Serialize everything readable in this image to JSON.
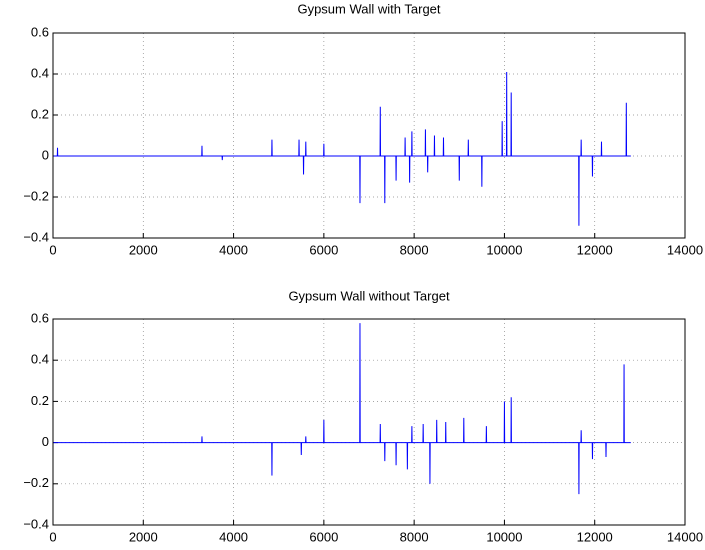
{
  "chart_data": [
    {
      "type": "line",
      "title": "Gypsum Wall with Target",
      "color": "#0000ff",
      "grid": true,
      "xlim": [
        0,
        14000
      ],
      "xticks": [
        0,
        2000,
        4000,
        6000,
        8000,
        10000,
        12000,
        14000
      ],
      "ylim": [
        -0.4,
        0.6
      ],
      "yticks": [
        {
          "value": -0.4,
          "label": "−0.4"
        },
        {
          "value": -0.2,
          "label": "−0.2"
        },
        0,
        0.2,
        0.4,
        0.6
      ],
      "x": [
        0,
        95,
        100,
        105,
        3295,
        3300,
        3305,
        3745,
        3750,
        3755,
        4845,
        4850,
        4855,
        5445,
        5450,
        5455,
        5545,
        5550,
        5555,
        5595,
        5600,
        5605,
        5995,
        6000,
        6005,
        6795,
        6800,
        6805,
        7245,
        7250,
        7255,
        7345,
        7350,
        7355,
        7595,
        7600,
        7605,
        7795,
        7800,
        7805,
        7895,
        7900,
        7905,
        7945,
        7950,
        7955,
        8245,
        8250,
        8255,
        8295,
        8300,
        8305,
        8445,
        8450,
        8455,
        8645,
        8650,
        8655,
        8995,
        9000,
        9005,
        9195,
        9200,
        9205,
        9495,
        9500,
        9505,
        9945,
        9950,
        9955,
        10045,
        10050,
        10055,
        10145,
        10150,
        10155,
        11645,
        11650,
        11655,
        11695,
        11700,
        11705,
        11945,
        11950,
        11955,
        12145,
        12150,
        12155,
        12695,
        12700,
        12705,
        12800
      ],
      "values": [
        0,
        0,
        0.04,
        0,
        0,
        0.05,
        0,
        0,
        -0.02,
        0,
        0,
        0.08,
        0,
        0,
        0.08,
        0,
        0,
        -0.09,
        0,
        0,
        0.07,
        0,
        0,
        0.06,
        0,
        0,
        -0.23,
        0,
        0,
        0.24,
        0,
        0,
        -0.23,
        0,
        0,
        -0.12,
        0,
        0,
        0.09,
        0,
        0,
        -0.13,
        0,
        0,
        0.12,
        0,
        0,
        0.13,
        0,
        0,
        -0.08,
        0,
        0,
        0.1,
        0,
        0,
        0.09,
        0,
        0,
        -0.12,
        0,
        0,
        0.08,
        0,
        0,
        -0.15,
        0,
        0,
        0.17,
        0,
        0,
        0.41,
        0,
        0,
        0.31,
        0,
        0,
        -0.34,
        0,
        0,
        0.08,
        0,
        0,
        -0.1,
        0,
        0,
        0.07,
        0,
        0,
        0.26,
        0,
        0
      ]
    },
    {
      "type": "line",
      "title": "Gypsum Wall without Target",
      "color": "#0000ff",
      "grid": true,
      "xlim": [
        0,
        14000
      ],
      "xticks": [
        0,
        2000,
        4000,
        6000,
        8000,
        10000,
        12000,
        14000
      ],
      "ylim": [
        -0.4,
        0.6
      ],
      "yticks": [
        {
          "value": -0.4,
          "label": "−0.4"
        },
        {
          "value": -0.2,
          "label": "−0.2"
        },
        0,
        0.2,
        0.4,
        0.6
      ],
      "x": [
        0,
        3295,
        3300,
        3305,
        4845,
        4850,
        4855,
        5495,
        5500,
        5505,
        5595,
        5600,
        5605,
        5995,
        6000,
        6005,
        6795,
        6800,
        6805,
        7245,
        7250,
        7255,
        7345,
        7350,
        7355,
        7595,
        7600,
        7605,
        7845,
        7850,
        7855,
        7945,
        7950,
        7955,
        8195,
        8200,
        8205,
        8345,
        8350,
        8355,
        8495,
        8500,
        8505,
        8695,
        8700,
        8705,
        9095,
        9100,
        9105,
        9595,
        9600,
        9605,
        9995,
        10000,
        10005,
        10145,
        10150,
        10155,
        11645,
        11650,
        11655,
        11695,
        11700,
        11705,
        11945,
        11950,
        11955,
        12245,
        12250,
        12255,
        12645,
        12650,
        12655,
        12800
      ],
      "values": [
        0,
        0,
        0.03,
        0,
        0,
        -0.16,
        0,
        0,
        -0.06,
        0,
        0,
        0.03,
        0,
        0,
        0.11,
        0,
        0,
        0.58,
        0,
        0,
        0.09,
        0,
        0,
        -0.09,
        0,
        0,
        -0.11,
        0,
        0,
        -0.13,
        0,
        0,
        0.08,
        0,
        0,
        0.09,
        0,
        0,
        -0.2,
        0,
        0,
        0.11,
        0,
        0,
        0.1,
        0,
        0,
        0.12,
        0,
        0,
        0.08,
        0,
        0,
        0.2,
        0,
        0,
        0.22,
        0,
        0,
        -0.25,
        0,
        0,
        0.06,
        0,
        0,
        -0.08,
        0,
        0,
        -0.07,
        0,
        0,
        0.38,
        0,
        0
      ]
    }
  ]
}
